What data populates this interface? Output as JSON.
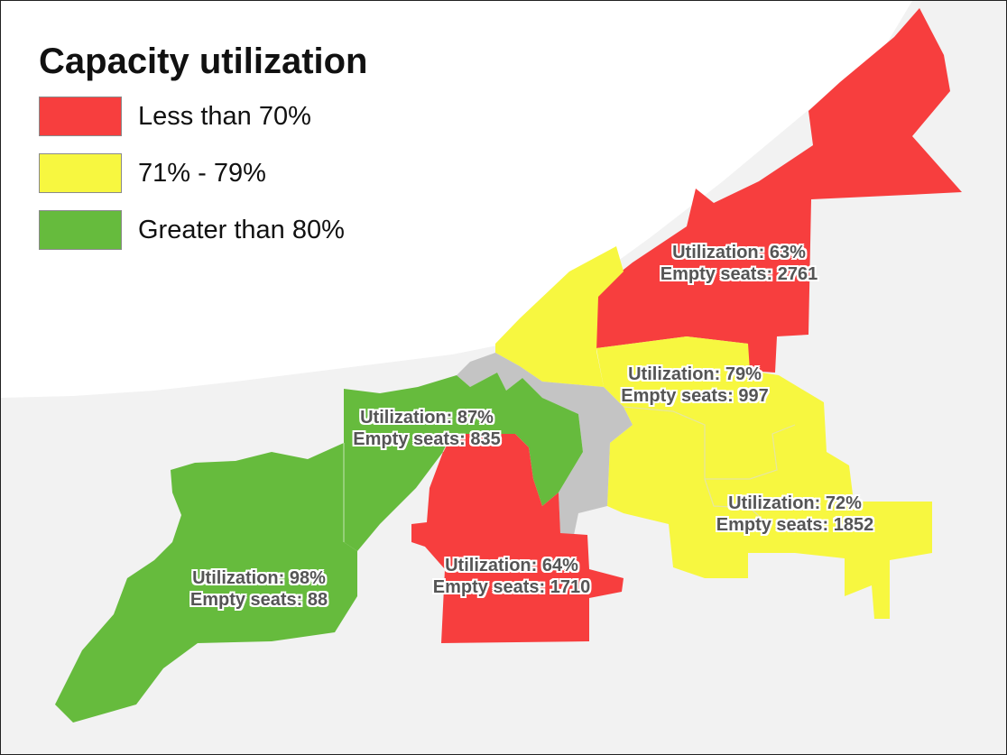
{
  "legend": {
    "title": "Capacity utilization",
    "items": [
      {
        "label": "Less than 70%",
        "color": "#f73e3e"
      },
      {
        "label": "71% - 79%",
        "color": "#f7f740"
      },
      {
        "label": "Greater than 80%",
        "color": "#66bb3d"
      }
    ]
  },
  "colors": {
    "red": "#f73e3e",
    "yellow": "#f7f740",
    "green": "#66bb3d",
    "gray": "#c4c4c4",
    "background_land": "#f2f2f2",
    "water": "#ffffff"
  },
  "regions": {
    "northeast": {
      "utilization": "Utilization: 63%",
      "empty_seats": "Empty seats: 2761"
    },
    "east": {
      "utilization": "Utilization: 79%",
      "empty_seats": "Empty seats: 997"
    },
    "west_central": {
      "utilization": "Utilization: 87%",
      "empty_seats": "Empty seats: 835"
    },
    "southeast": {
      "utilization": "Utilization: 72%",
      "empty_seats": "Empty seats: 1852"
    },
    "west": {
      "utilization": "Utilization: 98%",
      "empty_seats": "Empty seats: 88"
    },
    "south_central": {
      "utilization": "Utilization: 64%",
      "empty_seats": "Empty seats: 1710"
    }
  }
}
